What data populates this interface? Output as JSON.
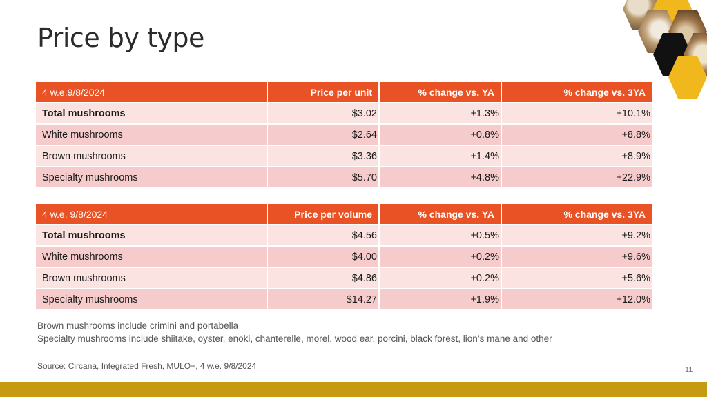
{
  "title": "Price by type",
  "colors": {
    "header_bg": "#e85224",
    "row_light": "#fae3e1",
    "row_dark": "#f5cbcb",
    "accent_bar": "#c69a12",
    "hex_gold": "#f0b81c"
  },
  "unit_table": {
    "headers": [
      "4 w.e.9/8/2024",
      "Price per unit",
      "% change vs. YA",
      "% change vs. 3YA"
    ],
    "rows": [
      [
        "Total mushrooms",
        "$3.02",
        "+1.3%",
        "+10.1%"
      ],
      [
        "White mushrooms",
        "$2.64",
        "+0.8%",
        "+8.8%"
      ],
      [
        "Brown mushrooms",
        "$3.36",
        "+1.4%",
        "+8.9%"
      ],
      [
        "Specialty mushrooms",
        "$5.70",
        "+4.8%",
        "+22.9%"
      ]
    ]
  },
  "volume_table": {
    "headers": [
      "4 w.e. 9/8/2024",
      "Price per volume",
      "% change vs. YA",
      "% change vs. 3YA"
    ],
    "rows": [
      [
        "Total mushrooms",
        "$4.56",
        "+0.5%",
        "+9.2%"
      ],
      [
        "White mushrooms",
        "$4.00",
        "+0.2%",
        "+9.6%"
      ],
      [
        "Brown mushrooms",
        "$4.86",
        "+0.2%",
        "+5.6%"
      ],
      [
        "Specialty mushrooms",
        "$14.27",
        "+1.9%",
        "+12.0%"
      ]
    ]
  },
  "notes": [
    "Brown mushrooms include crimini and portabella",
    "Specialty mushrooms include shiitake, oyster, enoki, chanterelle, morel, wood ear, porcini, black forest, lion’s mane and other"
  ],
  "source": "Source: Circana, Integrated Fresh, MULO+, 4 w.e. 9/8/2024",
  "page_number": "11"
}
